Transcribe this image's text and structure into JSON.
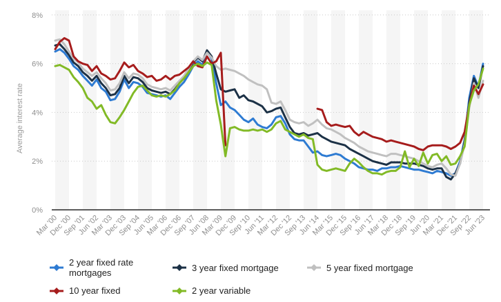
{
  "chart_data": {
    "type": "line",
    "title": "",
    "ylabel": "Average interest rate",
    "ylim": [
      0,
      8
    ],
    "y_tick_labels": [
      "0%",
      "2%",
      "4%",
      "6%",
      "8%"
    ],
    "grid": "horizontal-dotted",
    "plot_band_color": "#f5f5f5",
    "axis_line_color": "#262626",
    "legend_position": "bottom",
    "x_unit": "quarterly",
    "x_range": "Mar 2000 - Jun 2023",
    "x_ticks_every_n_points": 3,
    "x_tick_labels": [
      "Mar '00",
      "Dec '00",
      "Sep '01",
      "Jun '02",
      "Mar '03",
      "Dec '03",
      "Sep '04",
      "Jun '05",
      "Mar '06",
      "Dec '06",
      "Sep '07",
      "Jun '08",
      "Mar '09",
      "Dec '09",
      "Sep '10",
      "Jun '11",
      "Mar '12",
      "Dec '12",
      "Sep '13",
      "Jun '14",
      "Mar '15",
      "Dec '15",
      "Sep '16",
      "Jun '17",
      "Mar '18",
      "Dec '18",
      "Sep '19",
      "Jun '20",
      "Mar '21",
      "Dec '21",
      "Sep '22",
      "Jun '23"
    ],
    "series": [
      {
        "name": "2 year fixed rate mortgages",
        "color": "#2e7bd2",
        "values": [
          6.5,
          6.6,
          6.45,
          6.2,
          5.9,
          5.75,
          5.5,
          5.3,
          5.1,
          5.35,
          5.0,
          4.85,
          4.5,
          4.55,
          4.85,
          5.35,
          5.0,
          5.25,
          5.2,
          5.05,
          4.8,
          4.75,
          4.7,
          4.65,
          4.7,
          4.55,
          4.8,
          5.05,
          5.25,
          5.55,
          5.9,
          6.1,
          5.95,
          6.5,
          6.2,
          5.2,
          4.3,
          4.45,
          4.2,
          4.1,
          3.9,
          3.7,
          3.6,
          3.75,
          3.5,
          3.4,
          3.35,
          3.5,
          3.8,
          3.85,
          3.55,
          3.1,
          2.9,
          2.85,
          2.85,
          2.6,
          2.35,
          2.4,
          2.25,
          2.2,
          2.25,
          2.3,
          2.25,
          2.1,
          2.0,
          1.9,
          1.75,
          1.7,
          1.65,
          1.65,
          1.6,
          1.7,
          1.7,
          1.75,
          1.75,
          1.8,
          1.75,
          1.7,
          1.65,
          1.65,
          1.6,
          1.55,
          1.5,
          1.6,
          1.55,
          1.5,
          1.4,
          1.5,
          2.0,
          2.9,
          4.6,
          5.5,
          5.05,
          6.0
        ]
      },
      {
        "name": "3 year fixed mortgage",
        "color": "#1c3146",
        "values": [
          6.75,
          6.8,
          6.6,
          6.35,
          6.05,
          5.9,
          5.65,
          5.5,
          5.3,
          5.5,
          5.2,
          5.0,
          4.7,
          4.75,
          5.0,
          5.5,
          5.2,
          5.45,
          5.4,
          5.25,
          5.0,
          4.9,
          4.85,
          4.8,
          4.85,
          4.75,
          4.95,
          5.2,
          5.4,
          5.7,
          6.05,
          6.25,
          6.1,
          6.55,
          6.3,
          5.6,
          4.95,
          4.85,
          4.9,
          4.95,
          4.6,
          4.7,
          4.5,
          4.45,
          4.35,
          4.25,
          4.0,
          4.05,
          4.15,
          4.2,
          3.8,
          3.4,
          3.15,
          3.1,
          3.15,
          3.05,
          3.1,
          3.15,
          3.0,
          2.9,
          2.8,
          2.75,
          2.7,
          2.65,
          2.5,
          2.4,
          2.3,
          2.2,
          2.1,
          2.0,
          1.95,
          1.9,
          1.85,
          1.95,
          1.95,
          1.95,
          1.9,
          1.9,
          1.9,
          1.85,
          1.8,
          1.7,
          1.65,
          1.7,
          1.7,
          1.35,
          1.25,
          1.5,
          1.9,
          2.8,
          4.4,
          5.4,
          5.0,
          5.9
        ]
      },
      {
        "name": "5 year fixed mortgage",
        "color": "#c0c0c0",
        "values": [
          6.95,
          7.0,
          6.8,
          6.5,
          6.2,
          6.05,
          5.8,
          5.65,
          5.5,
          5.65,
          5.4,
          5.2,
          4.9,
          4.95,
          5.2,
          5.65,
          5.4,
          5.6,
          5.55,
          5.4,
          5.15,
          5.05,
          5.0,
          4.95,
          5.0,
          4.9,
          5.1,
          5.3,
          5.5,
          5.8,
          6.1,
          6.3,
          6.15,
          6.45,
          6.25,
          5.9,
          5.75,
          5.8,
          5.75,
          5.7,
          5.6,
          5.5,
          5.35,
          5.25,
          5.15,
          5.1,
          4.95,
          4.4,
          4.35,
          4.45,
          4.1,
          3.7,
          3.6,
          3.55,
          3.6,
          3.45,
          3.55,
          3.7,
          3.5,
          3.35,
          3.3,
          3.2,
          3.1,
          2.95,
          2.85,
          2.75,
          2.6,
          2.5,
          2.4,
          2.35,
          2.3,
          2.25,
          2.2,
          2.3,
          2.3,
          2.25,
          2.2,
          2.15,
          2.1,
          2.0,
          1.9,
          1.8,
          1.75,
          1.85,
          1.9,
          1.7,
          1.45,
          1.4,
          1.9,
          2.7,
          4.2,
          5.2,
          4.6,
          5.3
        ]
      },
      {
        "name": "10 year fixed",
        "color": "#a61c1c",
        "values": [
          6.6,
          6.9,
          7.05,
          6.95,
          6.3,
          6.1,
          6.0,
          5.95,
          5.7,
          5.9,
          5.6,
          5.5,
          5.35,
          5.4,
          5.7,
          6.05,
          5.85,
          5.95,
          5.7,
          5.6,
          5.45,
          5.5,
          5.3,
          5.35,
          5.5,
          5.35,
          5.5,
          5.55,
          5.7,
          5.85,
          6.1,
          5.9,
          5.85,
          6.3,
          6.0,
          6.1,
          6.45,
          2.65,
          null,
          null,
          null,
          null,
          null,
          null,
          null,
          null,
          null,
          null,
          null,
          null,
          null,
          null,
          null,
          null,
          null,
          null,
          null,
          4.15,
          4.1,
          3.6,
          3.45,
          3.5,
          3.45,
          3.4,
          3.45,
          3.2,
          3.05,
          3.2,
          3.1,
          3.0,
          2.95,
          2.9,
          2.8,
          2.85,
          2.8,
          2.75,
          2.7,
          2.65,
          2.6,
          2.5,
          2.45,
          2.6,
          2.65,
          2.65,
          2.65,
          2.6,
          2.5,
          2.6,
          2.75,
          3.2,
          4.3,
          5.1,
          4.75,
          5.15
        ]
      },
      {
        "name": "2 year variable",
        "color": "#82ba26",
        "values": [
          5.9,
          5.95,
          5.85,
          5.75,
          5.45,
          5.25,
          5.0,
          4.6,
          4.45,
          4.15,
          4.3,
          3.9,
          3.6,
          3.55,
          3.8,
          4.1,
          4.45,
          4.8,
          5.05,
          5.1,
          4.9,
          4.7,
          4.65,
          4.7,
          4.65,
          4.75,
          4.9,
          5.2,
          5.4,
          5.65,
          5.9,
          6.0,
          5.9,
          6.05,
          5.95,
          4.5,
          3.5,
          2.2,
          3.35,
          3.4,
          3.3,
          3.25,
          3.25,
          3.3,
          3.25,
          3.3,
          3.2,
          3.3,
          3.55,
          3.65,
          3.3,
          3.2,
          3.1,
          3.0,
          3.1,
          2.95,
          2.9,
          1.85,
          1.65,
          1.6,
          1.65,
          1.7,
          1.65,
          1.6,
          1.9,
          2.1,
          1.95,
          1.75,
          1.6,
          1.5,
          1.5,
          1.45,
          1.55,
          1.6,
          1.6,
          1.75,
          2.4,
          1.75,
          2.1,
          1.8,
          2.35,
          1.9,
          2.25,
          2.3,
          2.0,
          2.2,
          1.85,
          1.9,
          2.2,
          2.6,
          4.3,
          4.9,
          5.15,
          5.8
        ]
      }
    ]
  },
  "legend": {
    "items": [
      {
        "label": "2 year fixed rate mortgages",
        "color": "#2e7bd2"
      },
      {
        "label": "3 year fixed mortgage",
        "color": "#1c3146"
      },
      {
        "label": "5 year fixed mortgage",
        "color": "#c0c0c0"
      },
      {
        "label": "10 year fixed",
        "color": "#a61c1c"
      },
      {
        "label": "2 year variable",
        "color": "#82ba26"
      }
    ]
  }
}
